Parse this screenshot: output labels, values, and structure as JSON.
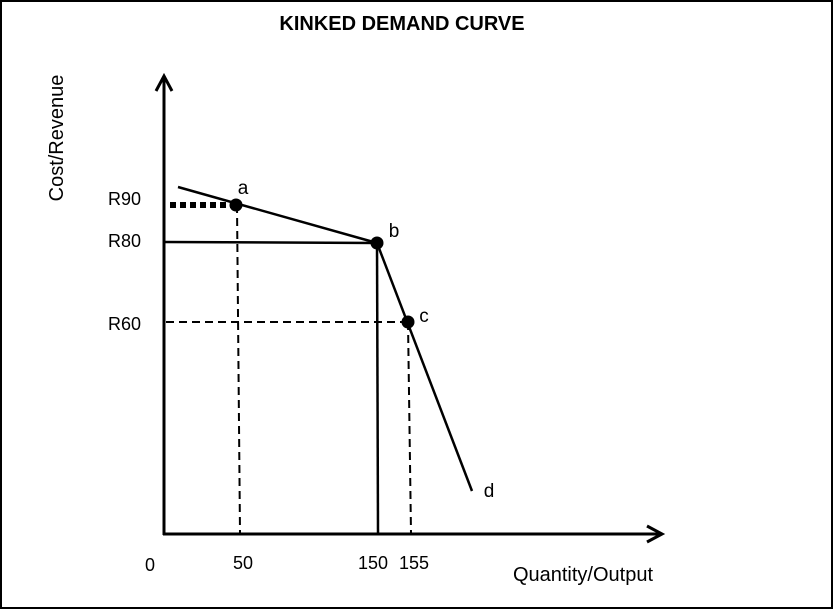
{
  "chart_data": {
    "type": "line",
    "title": "KINKED DEMAND CURVE",
    "xlabel": "Quantity/Output",
    "ylabel": "Cost/Revenue",
    "x_origin_label": "0",
    "x_ticks": [
      "50",
      "150",
      "155"
    ],
    "y_ticks": [
      "R90",
      "R80",
      "R60"
    ],
    "points": [
      {
        "label": "a",
        "x": 50,
        "y": 90
      },
      {
        "label": "b",
        "x": 150,
        "y": 80
      },
      {
        "label": "c",
        "x": 155,
        "y": 60
      }
    ],
    "curve_end_label": "d",
    "grid": false,
    "legend": "none"
  }
}
